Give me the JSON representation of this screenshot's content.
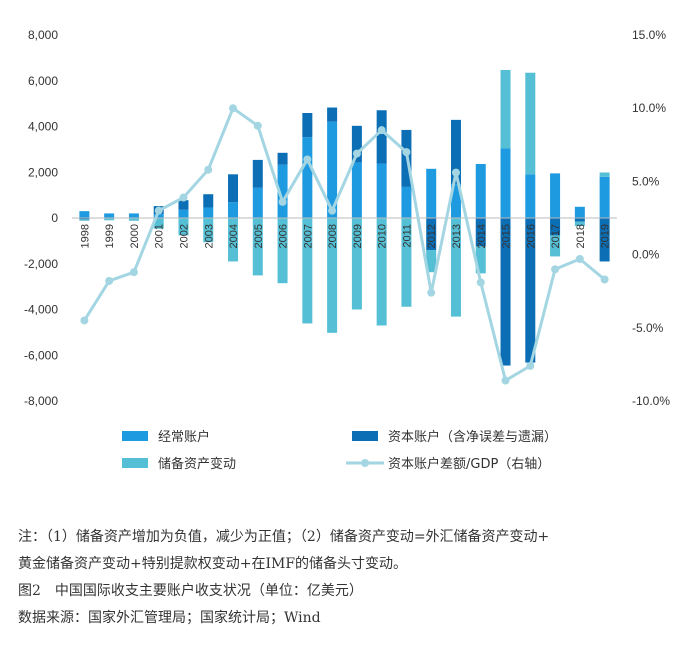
{
  "chart_data": {
    "type": "bar",
    "categories": [
      "1998",
      "1999",
      "2000",
      "2001",
      "2002",
      "2003",
      "2004",
      "2005",
      "2006",
      "2007",
      "2008",
      "2009",
      "2010",
      "2011",
      "2012",
      "2013",
      "2014",
      "2015",
      "2016",
      "2017",
      "2018",
      "2019"
    ],
    "series": [
      {
        "name": "经常账户",
        "kind": "bar",
        "axis": "left",
        "color": "#1e9be0",
        "values": [
          300,
          200,
          200,
          170,
          360,
          460,
          690,
          1320,
          2330,
          3530,
          4210,
          2430,
          2380,
          1360,
          2150,
          1480,
          2360,
          3040,
          1910,
          1950,
          490,
          1800
        ]
      },
      {
        "name": "资本账户（含净误差与遗漏）",
        "kind": "bar",
        "axis": "left",
        "color": "#0c6eb5",
        "values": [
          -60,
          -10,
          -20,
          350,
          420,
          580,
          1220,
          1220,
          520,
          1060,
          620,
          1600,
          2330,
          2490,
          -1400,
          2810,
          -1240,
          -6450,
          -6320,
          -760,
          -160,
          -1900
        ]
      },
      {
        "name": "储备资产变动",
        "kind": "bar",
        "axis": "left",
        "color": "#55c0d5",
        "values": [
          -60,
          -90,
          -100,
          -470,
          -760,
          -1060,
          -1900,
          -2510,
          -2850,
          -4610,
          -5020,
          -4000,
          -4700,
          -3880,
          -970,
          -4310,
          -1180,
          3430,
          4440,
          -920,
          -190,
          190
        ]
      },
      {
        "name": "资本账户差额/GDP（右轴）",
        "kind": "line",
        "axis": "right",
        "color": "#a3d6e2",
        "values": [
          -4.5,
          -1.8,
          -1.2,
          3.0,
          3.9,
          5.8,
          10.0,
          8.8,
          3.6,
          6.5,
          3.0,
          6.9,
          8.5,
          7.0,
          -2.6,
          5.6,
          -1.9,
          -8.6,
          -7.6,
          -1.0,
          -0.3,
          -1.7
        ]
      }
    ],
    "ylim_left": [
      -8000,
      8000
    ],
    "yticks_left": [
      "8,000",
      "6,000",
      "4,000",
      "2,000",
      "0",
      "-2,000",
      "-4,000",
      "-6,000",
      "-8,000"
    ],
    "ylim_right": [
      -10.0,
      15.0
    ],
    "yticks_right": [
      "15.0%",
      "10.0%",
      "5.0%",
      "0.0%",
      "-5.0%",
      "-10.0%"
    ],
    "legend": [
      "经常账户",
      "资本账户（含净误差与遗漏）",
      "储备资产变动",
      "资本账户差额/GDP（右轴）"
    ],
    "legend_position": "bottom",
    "grid": false
  },
  "notes": {
    "line1": "注：（1）储备资产增加为负值，减少为正值；（2）储备资产变动=外汇储备资产变动+",
    "line2": "黄金储备资产变动+特别提款权变动+在IMF的储备头寸变动。",
    "caption": "图2　中国国际收支主要账户收支状况（单位：亿美元）",
    "source": "数据来源：国家外汇管理局；国家统计局；Wind"
  }
}
